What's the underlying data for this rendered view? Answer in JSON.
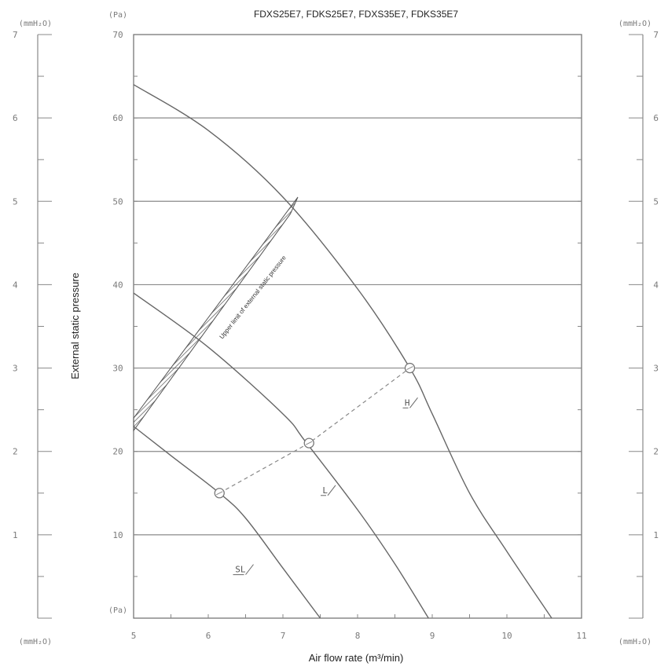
{
  "chart_data": {
    "type": "line",
    "title": "FDXS25E7, FDKS25E7, FDXS35E7, FDKS35E7",
    "xlabel": "Air flow rate (m³/min)",
    "ylabel": "External static pressure",
    "xlim": [
      5,
      11
    ],
    "ylim": [
      0,
      70
    ],
    "x_ticks": [
      "5",
      "6",
      "7",
      "8",
      "9",
      "10",
      "11"
    ],
    "y_ticks_pa": [
      "10",
      "20",
      "30",
      "40",
      "50",
      "60",
      "70"
    ],
    "y_ticks_mmh2o": [
      "1",
      "2",
      "3",
      "4",
      "5",
      "6",
      "7"
    ],
    "y_unit_pa": "(Pa)",
    "y_unit_mmh2o": "(mmH₂O)",
    "grid": "horizontal",
    "series": [
      {
        "name": "H",
        "label_at": [
          8.7,
          25.5
        ],
        "points": [
          [
            5,
            64
          ],
          [
            6,
            58.5
          ],
          [
            7,
            50.5
          ],
          [
            8,
            39.5
          ],
          [
            8.7,
            30
          ],
          [
            9,
            24.5
          ],
          [
            9.5,
            15
          ],
          [
            10,
            8
          ],
          [
            10.6,
            0
          ]
        ]
      },
      {
        "name": "L",
        "label_at": [
          7.6,
          15
        ],
        "points": [
          [
            5,
            39
          ],
          [
            6,
            32.5
          ],
          [
            7,
            24.5
          ],
          [
            7.3,
            21.2
          ],
          [
            8,
            13
          ],
          [
            8.5,
            6.5
          ],
          [
            8.95,
            0
          ]
        ]
      },
      {
        "name": "SL",
        "label_at": [
          6.5,
          5.5
        ],
        "points": [
          [
            5,
            23
          ],
          [
            5.5,
            19.5
          ],
          [
            6.15,
            15
          ],
          [
            6.5,
            12
          ],
          [
            7,
            6
          ],
          [
            7.5,
            0
          ]
        ]
      }
    ],
    "operating_points": [
      [
        6.15,
        15
      ],
      [
        7.35,
        21
      ],
      [
        8.7,
        30
      ]
    ],
    "annotation": "Upper limit of external static pressure"
  }
}
